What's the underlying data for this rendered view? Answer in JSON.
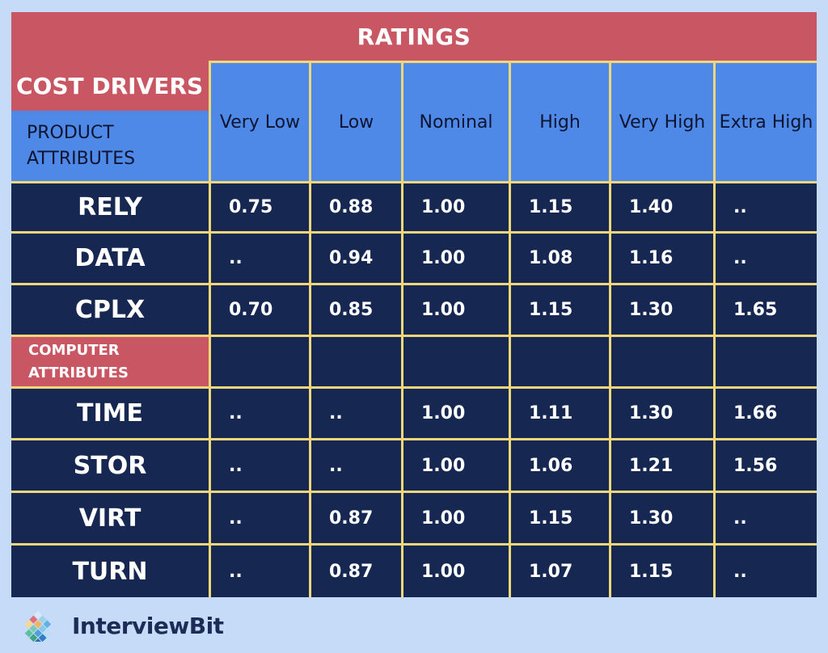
{
  "title": "RATINGS",
  "cost_drivers_label": "COST DRIVERS",
  "product_attributes_label": "PRODUCT ATTRIBUTES",
  "computer_attributes_label": "COMPUTER ATTRIBUTES",
  "columns": [
    "Very Low",
    "Low",
    "Nominal",
    "High",
    "Very High",
    "Extra High"
  ],
  "rows": [
    {
      "name": "RELY",
      "values": [
        "0.75",
        "0.88",
        "1.00",
        "1.15",
        "1.40",
        ".."
      ]
    },
    {
      "name": "DATA",
      "values": [
        "..",
        "0.94",
        "1.00",
        "1.08",
        "1.16",
        ".."
      ]
    },
    {
      "name": "CPLX",
      "values": [
        "0.70",
        "0.85",
        "1.00",
        "1.15",
        "1.30",
        "1.65"
      ]
    },
    {
      "name": "TIME",
      "values": [
        "..",
        "..",
        "1.00",
        "1.11",
        "1.30",
        "1.66"
      ]
    },
    {
      "name": "STOR",
      "values": [
        "..",
        "..",
        "1.00",
        "1.06",
        "1.21",
        "1.56"
      ]
    },
    {
      "name": "VIRT",
      "values": [
        "..",
        "0.87",
        "1.00",
        "1.15",
        "1.30",
        ".."
      ]
    },
    {
      "name": "TURN",
      "values": [
        "..",
        "0.87",
        "1.00",
        "1.07",
        "1.15",
        ".."
      ]
    }
  ],
  "logo_text": "InterviewBit",
  "colors": {
    "background": "#c5dbf7",
    "header_red": "#c85763",
    "header_blue": "#4f89e8",
    "cell_navy": "#162851",
    "grid_gold": "#f0d77a"
  }
}
